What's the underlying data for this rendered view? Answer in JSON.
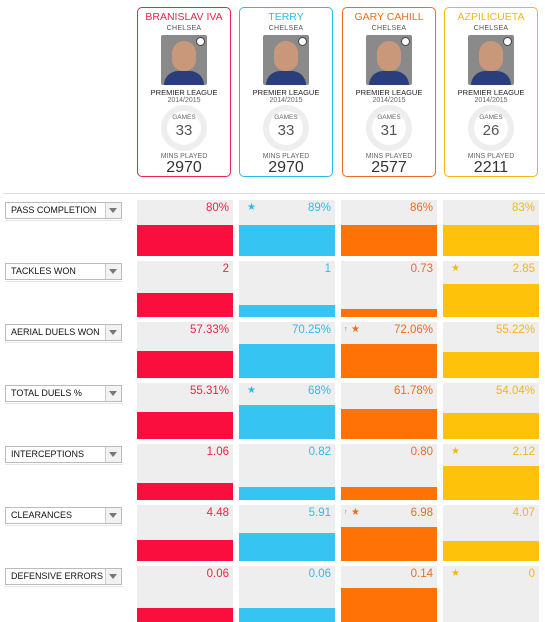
{
  "players": [
    {
      "name": "BRANISLAV IVA",
      "club": "CHELSEA",
      "league": "PREMIER LEAGUE",
      "season": "2014/2015",
      "games_label": "GAMES",
      "games": "33",
      "mins_label": "MINS PLAYED",
      "mins": "2970",
      "color": "#e8254a",
      "bar": "#fa0e3d"
    },
    {
      "name": "TERRY",
      "club": "CHELSEA",
      "league": "PREMIER LEAGUE",
      "season": "2014/2015",
      "games_label": "GAMES",
      "games": "33",
      "mins_label": "MINS PLAYED",
      "mins": "2970",
      "color": "#2cbcea",
      "bar": "#36c5f3"
    },
    {
      "name": "GARY CAHILL",
      "club": "CHELSEA",
      "league": "PREMIER LEAGUE",
      "season": "2014/2015",
      "games_label": "GAMES",
      "games": "31",
      "mins_label": "MINS PLAYED",
      "mins": "2577",
      "color": "#f26b1d",
      "bar": "#ff7205"
    },
    {
      "name": "AZPILICUETA",
      "club": "CHELSEA",
      "league": "PREMIER LEAGUE",
      "season": "2014/2015",
      "games_label": "GAMES",
      "games": "26",
      "mins_label": "MINS PLAYED",
      "mins": "2211",
      "color": "#f6b716",
      "bar": "#ffc20a"
    }
  ],
  "stats": [
    {
      "label": "PASS COMPLETION",
      "values": [
        "80%",
        "89%",
        "86%",
        "83%"
      ],
      "fill": [
        0.56,
        0.56,
        0.56,
        0.56
      ],
      "star": [
        false,
        true,
        false,
        false
      ],
      "arrow": [
        false,
        false,
        false,
        false
      ]
    },
    {
      "label": "TACKLES WON",
      "values": [
        "2",
        "1",
        "0.73",
        "2.85"
      ],
      "fill": [
        0.42,
        0.21,
        0.15,
        0.59
      ],
      "star": [
        false,
        false,
        false,
        true
      ],
      "arrow": [
        false,
        false,
        false,
        false
      ]
    },
    {
      "label": "AERIAL DUELS WON",
      "values": [
        "57.33%",
        "70.25%",
        "72.06%",
        "55.22%"
      ],
      "fill": [
        0.49,
        0.6,
        0.61,
        0.47
      ],
      "star": [
        false,
        false,
        true,
        false
      ],
      "arrow": [
        false,
        false,
        true,
        false
      ]
    },
    {
      "label": "TOTAL DUELS %",
      "values": [
        "55.31%",
        "68%",
        "61.78%",
        "54.04%"
      ],
      "fill": [
        0.49,
        0.6,
        0.54,
        0.47
      ],
      "star": [
        false,
        true,
        false,
        false
      ],
      "arrow": [
        false,
        false,
        false,
        false
      ]
    },
    {
      "label": "INTERCEPTIONS",
      "values": [
        "1.06",
        "0.82",
        "0.80",
        "2.12"
      ],
      "fill": [
        0.3,
        0.23,
        0.23,
        0.6
      ],
      "star": [
        false,
        false,
        false,
        true
      ],
      "arrow": [
        false,
        false,
        false,
        false
      ]
    },
    {
      "label": "CLEARANCES",
      "values": [
        "4.48",
        "5.91",
        "6.98",
        "4.07"
      ],
      "fill": [
        0.38,
        0.5,
        0.6,
        0.35
      ],
      "star": [
        false,
        false,
        true,
        false
      ],
      "arrow": [
        false,
        false,
        true,
        false
      ]
    },
    {
      "label": "DEFENSIVE ERRORS",
      "values": [
        "0.06",
        "0.06",
        "0.14",
        "0"
      ],
      "fill": [
        0.25,
        0.25,
        0.6,
        0
      ],
      "star": [
        false,
        false,
        false,
        true
      ],
      "arrow": [
        false,
        false,
        false,
        false
      ]
    }
  ],
  "icons": {
    "star": "star-icon",
    "arrow": "arrow-up-icon",
    "dropdown": "chevron-down-icon"
  }
}
